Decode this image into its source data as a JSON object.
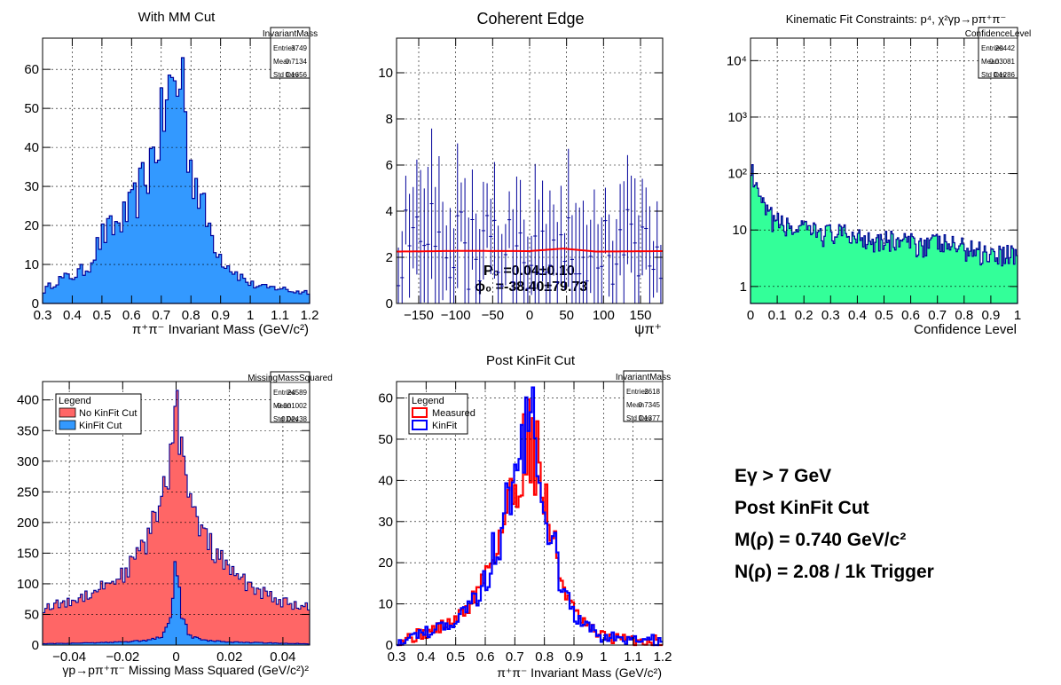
{
  "panels": {
    "p1": {
      "title": "With MM Cut",
      "stats_name": "InvariantMass",
      "xlabel": "π⁺π⁻ Invariant Mass (GeV/c²)",
      "stats": [
        {
          "k": "Entries",
          "v": "3749"
        },
        {
          "k": "Mean",
          "v": "0.7134"
        },
        {
          "k": "Std Dev",
          "v": "0.1656"
        }
      ]
    },
    "p2": {
      "title": "Coherent Edge",
      "xlabel": "ψπ⁺",
      "fit_line1": "P₀ =0.04±0.10",
      "fit_line2": "ϕ₀ =-38.40±79.73"
    },
    "p3": {
      "title": "Kinematic Fit Constraints: p⁴, χ²γp→pπ⁺π⁻",
      "stats_name": "ConfidenceLevel",
      "xlabel": "Confidence Level",
      "stats": [
        {
          "k": "Entries",
          "v": "20442"
        },
        {
          "k": "Mean",
          "v": "0.03081"
        },
        {
          "k": "Std Dev",
          "v": "0.1286"
        }
      ]
    },
    "p4": {
      "title": "",
      "stats_name": "MissingMassSquared",
      "xlabel": "γp→pπ⁺π⁻ Missing Mass Squared (GeV/c²)²",
      "stats": [
        {
          "k": "Entries",
          "v": "24589"
        },
        {
          "k": "Mean",
          "v": "-0.001002"
        },
        {
          "k": "Std Dev",
          "v": "0.02438"
        }
      ],
      "legend_title": "Legend",
      "legend": [
        "No KinFit Cut",
        "KinFit Cut"
      ]
    },
    "p5": {
      "title": "Post KinFit Cut",
      "stats_name": "InvariantMass",
      "xlabel": "π⁺π⁻ Invariant Mass (GeV/c²)",
      "stats": [
        {
          "k": "Entries",
          "v": "2618"
        },
        {
          "k": "Mean",
          "v": "0.7345"
        },
        {
          "k": "Std Dev",
          "v": "0.1377"
        }
      ],
      "legend_title": "Legend",
      "legend": [
        "Measured",
        "KinFit"
      ]
    }
  },
  "summary": {
    "line1": "Eγ > 7 GeV",
    "line2": "Post KinFit Cut",
    "line3": "M(ρ) = 0.740 GeV/c²",
    "line4": "N(ρ) = 2.08 / 1k Trigger"
  },
  "colors": {
    "blue_fill": "#3399ff",
    "navy": "#000099",
    "green_fill": "#33ff99",
    "red_fill": "#ff6666",
    "measured": "#ff0000",
    "kinfit": "#0000ff",
    "fit": "#ff0000"
  },
  "chart_data": [
    {
      "type": "bar",
      "title": "With MM Cut",
      "xlabel": "π⁺π⁻ Invariant Mass (GeV/c²)",
      "ylabel": "",
      "xlim": [
        0.3,
        1.2
      ],
      "ylim": [
        0,
        68
      ],
      "x_ticks": [
        0.3,
        0.4,
        0.5,
        0.6,
        0.7,
        0.8,
        0.9,
        1,
        1.1,
        1.2
      ],
      "y_ticks": [
        0,
        10,
        20,
        30,
        40,
        50,
        60
      ],
      "series": [
        {
          "x": [
            0.3,
            0.35,
            0.4,
            0.45,
            0.5,
            0.55,
            0.6,
            0.65,
            0.7,
            0.72,
            0.75,
            0.77,
            0.8,
            0.85,
            0.9,
            0.95,
            1.0,
            1.05,
            1.1,
            1.15,
            1.2
          ],
          "values": [
            3,
            6,
            7,
            9,
            17,
            20,
            24,
            33,
            45,
            52,
            58,
            50,
            36,
            22,
            12,
            8,
            5,
            4,
            4,
            3,
            3
          ]
        }
      ]
    },
    {
      "type": "scatter",
      "title": "Coherent Edge",
      "xlabel": "ψπ⁺",
      "ylabel": "",
      "xlim": [
        -180,
        180
      ],
      "ylim": [
        0,
        11.5
      ],
      "x_ticks": [
        -150,
        -100,
        -50,
        0,
        50,
        100,
        150
      ],
      "y_ticks": [
        0,
        2,
        4,
        6,
        8,
        10
      ],
      "series": [
        {
          "x": [
            -170,
            -150,
            -130,
            -110,
            -90,
            -70,
            -50,
            -30,
            -10,
            10,
            30,
            50,
            70,
            90,
            110,
            130,
            150,
            170
          ],
          "values": [
            2.5,
            2.0,
            3.0,
            2.0,
            2.5,
            1.8,
            2.8,
            2.2,
            2.0,
            2.6,
            2.2,
            3.0,
            2.0,
            2.4,
            2.0,
            2.8,
            2.2,
            2.4
          ]
        },
        {
          "name": "fit",
          "x": [
            -180,
            -90,
            0,
            45,
            90,
            180
          ],
          "values": [
            2.25,
            2.28,
            2.27,
            2.38,
            2.25,
            2.27
          ]
        }
      ]
    },
    {
      "type": "bar",
      "title": "Kinematic Fit Constraints: p⁴, χ²γp→pπ⁺π⁻",
      "xlabel": "Confidence Level",
      "ylabel": "",
      "xlim": [
        0,
        1
      ],
      "ylim": [
        0.5,
        25000
      ],
      "log_y": true,
      "x_ticks": [
        0,
        0.1,
        0.2,
        0.3,
        0.4,
        0.5,
        0.6,
        0.7,
        0.8,
        0.9,
        1
      ],
      "y_ticks": [
        "1",
        "10",
        "10²",
        "10³",
        "10⁴"
      ],
      "series": [
        {
          "x": [
            0,
            0.005,
            0.01,
            0.02,
            0.04,
            0.06,
            0.1,
            0.15,
            0.2,
            0.3,
            0.4,
            0.5,
            0.6,
            0.7,
            0.8,
            0.9,
            1.0
          ],
          "values": [
            200,
            120,
            80,
            50,
            30,
            20,
            14,
            11,
            10,
            9,
            8,
            7,
            6,
            6,
            5,
            4,
            4
          ]
        }
      ]
    },
    {
      "type": "bar",
      "title": "",
      "xlabel": "γp→pπ⁺π⁻ Missing Mass Squared (GeV/c²)²",
      "ylabel": "",
      "xlim": [
        -0.05,
        0.05
      ],
      "ylim": [
        0,
        430
      ],
      "x_ticks": [
        -0.04,
        -0.02,
        0,
        0.02,
        0.04
      ],
      "y_ticks": [
        0,
        50,
        100,
        150,
        200,
        250,
        300,
        350,
        400
      ],
      "series": [
        {
          "name": "No KinFit Cut",
          "x": [
            -0.05,
            -0.04,
            -0.03,
            -0.02,
            -0.015,
            -0.01,
            -0.005,
            -0.002,
            0,
            0.002,
            0.005,
            0.01,
            0.015,
            0.02,
            0.03,
            0.04,
            0.05
          ],
          "values": [
            60,
            70,
            90,
            115,
            140,
            180,
            240,
            310,
            410,
            320,
            230,
            180,
            150,
            120,
            90,
            70,
            60
          ]
        },
        {
          "name": "KinFit Cut",
          "x": [
            -0.05,
            -0.04,
            -0.02,
            -0.01,
            -0.005,
            -0.002,
            0,
            0.002,
            0.005,
            0.01,
            0.02,
            0.04,
            0.05
          ],
          "values": [
            2,
            3,
            5,
            8,
            15,
            40,
            145,
            50,
            15,
            8,
            5,
            3,
            2
          ]
        }
      ]
    },
    {
      "type": "line",
      "title": "Post KinFit Cut",
      "xlabel": "π⁺π⁻ Invariant Mass (GeV/c²)",
      "ylabel": "",
      "xlim": [
        0.3,
        1.2
      ],
      "ylim": [
        0,
        64
      ],
      "x_ticks": [
        0.3,
        0.4,
        0.5,
        0.6,
        0.7,
        0.8,
        0.9,
        1,
        1.1,
        1.2
      ],
      "y_ticks": [
        0,
        10,
        20,
        30,
        40,
        50,
        60
      ],
      "series": [
        {
          "name": "Measured",
          "x": [
            0.3,
            0.4,
            0.5,
            0.55,
            0.6,
            0.65,
            0.7,
            0.73,
            0.76,
            0.8,
            0.85,
            0.9,
            0.95,
            1.0,
            1.1,
            1.2
          ],
          "values": [
            1,
            3,
            6,
            10,
            17,
            27,
            38,
            48,
            52,
            36,
            18,
            8,
            4,
            2,
            1,
            1
          ]
        },
        {
          "name": "KinFit",
          "x": [
            0.3,
            0.4,
            0.5,
            0.55,
            0.6,
            0.65,
            0.7,
            0.73,
            0.76,
            0.8,
            0.85,
            0.9,
            0.95,
            1.0,
            1.1,
            1.2
          ],
          "values": [
            1,
            3,
            6,
            9,
            16,
            28,
            40,
            50,
            56,
            38,
            17,
            7,
            4,
            2,
            1,
            1
          ]
        }
      ]
    }
  ]
}
